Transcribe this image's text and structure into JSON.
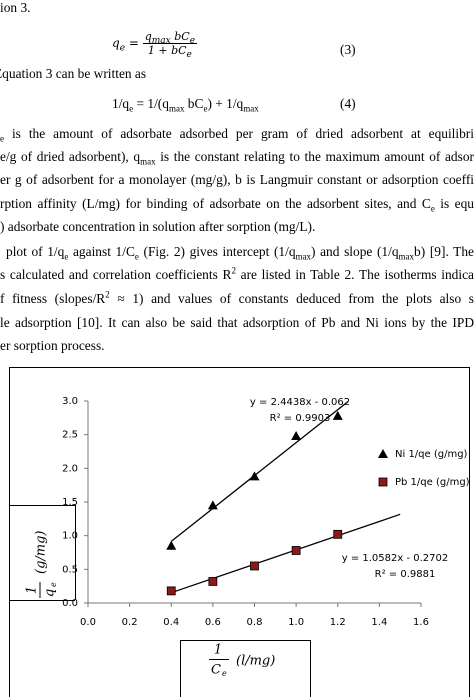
{
  "document": {
    "top_line": [
      "ion 3."
    ],
    "equation3": {
      "lhs": [
        "q",
        {
          "sub": "e"
        }
      ],
      "numerator": [
        "q",
        {
          "sub": "max"
        },
        " bC",
        {
          "sub": "e"
        }
      ],
      "denominator": [
        "1 + bC",
        {
          "sub": "e"
        }
      ],
      "number": "(3)"
    },
    "intro4": [
      "Equation 3 can be written as"
    ],
    "equation4": {
      "body": [
        "1/q",
        {
          "sub": "e"
        },
        " = 1/(q",
        {
          "sub": "max"
        },
        " bC",
        {
          "sub": "e"
        },
        ") + 1/q",
        {
          "sub": "max"
        }
      ],
      "number": "(4)"
    },
    "lines": [
      [
        {
          "sub": "e"
        },
        " is the amount of adsorbate adsorbed per gram of dried adsorbent at equilibri"
      ],
      [
        "e/g of dried adsorbent), q",
        {
          "sub": "max"
        },
        " is the constant relating to the maximum amount of adsor"
      ],
      [
        "er g of adsorbent for a monolayer (mg/g), b is Langmuir constant or adsorption coeffi"
      ],
      [
        "rption affinity (L/mg) for binding of adsorbate on the adsorbent sites, and C",
        {
          "sub": "e"
        },
        " is equ"
      ],
      [
        ") adsorbate concentration in solution after sorption (mg/L)."
      ],
      [
        "plot of 1/q",
        {
          "sub": "e"
        },
        " against 1/C",
        {
          "sub": "e"
        },
        " (Fig. 2) gives intercept (1/q",
        {
          "sub": "max"
        },
        ") and slope (1/q",
        {
          "sub": "max"
        },
        "b) [9]. The"
      ],
      [
        "s calculated and correlation coefficients R",
        {
          "sup": "2"
        },
        " are listed in Table 2. The isotherms indica"
      ],
      [
        "f fitness (slopes/R",
        {
          "sup": "2"
        },
        " ≈ 1) and values of constants deduced from the plots also s"
      ],
      [
        "le adsorption [10]. It can also be said that adsorption of Pb and Ni ions by the IPD"
      ],
      [
        "er sorption process."
      ]
    ]
  },
  "chart_data": {
    "type": "scatter",
    "x_label": {
      "numerator": "1",
      "denominator": "C",
      "denominator_sub": "e",
      "unit": "(l/mg)"
    },
    "y_label": {
      "numerator": "1",
      "denominator": "q",
      "denominator_sub": "e",
      "unit": "(g/mg)"
    },
    "xlim": [
      0,
      1.6
    ],
    "xticks": [
      {
        "value": 0,
        "label": "0.0"
      },
      0.2,
      0.4,
      0.6,
      0.8,
      {
        "value": 1,
        "label": "1.0"
      },
      1.2,
      1.4,
      1.6
    ],
    "ylim": [
      0,
      3
    ],
    "yticks": [
      {
        "value": 0,
        "label": "0.0"
      },
      0.5,
      {
        "value": 1,
        "label": "1.0"
      },
      1.5,
      {
        "value": 2,
        "label": "2.0"
      },
      2.5,
      {
        "value": 3,
        "label": "3.0"
      }
    ],
    "series": [
      {
        "name": "Ni 1/qe (g/mg)",
        "color": "#000000",
        "marker": "triangle",
        "x": [
          0.4,
          0.6,
          0.8,
          1.0,
          1.2
        ],
        "values": [
          0.85,
          1.45,
          1.88,
          2.48,
          2.78
        ],
        "trendline": {
          "equation": "y = 2.4438x - 0.062",
          "r2": "R² = 0.9903",
          "slope": 2.4438,
          "intercept": -0.062,
          "x_range": [
            0.4,
            1.25
          ]
        }
      },
      {
        "name": "Pb 1/qe (g/mg)",
        "color": "#8b1a1a",
        "marker": "square",
        "x": [
          0.4,
          0.6,
          0.8,
          1.0,
          1.2
        ],
        "values": [
          0.18,
          0.32,
          0.55,
          0.78,
          1.02
        ],
        "trendline": {
          "equation": "y = 1.0582x - 0.2702",
          "r2": "R² = 0.9881",
          "slope": 1.0582,
          "intercept": -0.2702,
          "x_range": [
            0.4,
            1.5
          ]
        }
      }
    ]
  }
}
